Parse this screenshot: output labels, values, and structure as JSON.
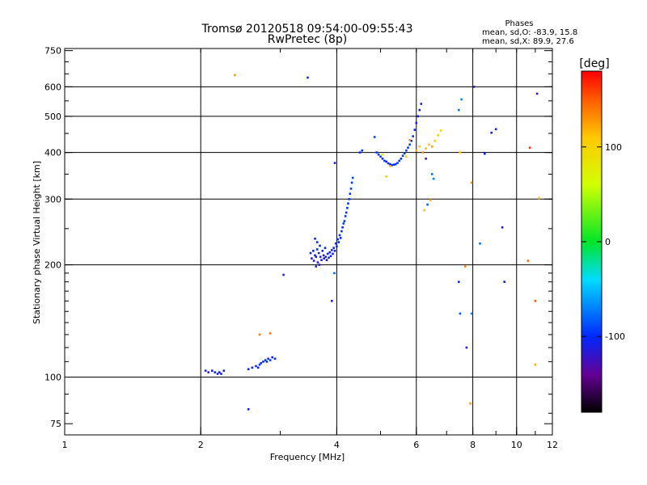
{
  "chart_data": {
    "type": "scatter",
    "title_line1": "Tromsø 20120518 09:54:00-09:55:43",
    "title_line2": "RwPretec (8p)",
    "info_title": "Phases",
    "info_line1": "mean, sd,O: -83.9, 15.8",
    "info_line2": "mean, sd,X:  89.9, 27.6",
    "xlabel": "Frequency [MHz]",
    "ylabel": "Stationary phase Virtual Height [km]",
    "x_scale": "log",
    "y_scale": "log",
    "xlim": [
      1,
      12
    ],
    "ylim": [
      70,
      760
    ],
    "x_ticks": [
      1,
      2,
      4,
      6,
      8,
      10,
      12
    ],
    "x_gridlines": [
      2,
      4,
      6,
      8,
      10
    ],
    "y_ticks": [
      75,
      100,
      200,
      300,
      400,
      500,
      600,
      750
    ],
    "y_gridlines": [
      100,
      200,
      300,
      400,
      500,
      600
    ],
    "grid": true,
    "colorbar": {
      "label": "[deg]",
      "range": [
        -180,
        180
      ],
      "ticks": [
        -100,
        0,
        100
      ]
    },
    "points": [
      [
        2.05,
        104,
        -110
      ],
      [
        2.08,
        103,
        -115
      ],
      [
        2.12,
        104,
        -105
      ],
      [
        2.15,
        103,
        -100
      ],
      [
        2.18,
        102,
        -110
      ],
      [
        2.2,
        103,
        -108
      ],
      [
        2.22,
        102,
        -112
      ],
      [
        2.25,
        104,
        -105
      ],
      [
        2.55,
        105,
        -100
      ],
      [
        2.6,
        106,
        -105
      ],
      [
        2.65,
        107,
        -110
      ],
      [
        2.68,
        106,
        -100
      ],
      [
        2.7,
        108,
        -95
      ],
      [
        2.72,
        109,
        -105
      ],
      [
        2.75,
        110,
        -100
      ],
      [
        2.78,
        111,
        -95
      ],
      [
        2.8,
        110,
        -105
      ],
      [
        2.82,
        112,
        -100
      ],
      [
        2.85,
        111,
        -95
      ],
      [
        2.88,
        113,
        -100
      ],
      [
        2.92,
        112,
        -105
      ],
      [
        2.55,
        82,
        -105
      ],
      [
        2.38,
        645,
        125
      ],
      [
        3.45,
        635,
        -105
      ],
      [
        2.7,
        130,
        140
      ],
      [
        2.85,
        131,
        140
      ],
      [
        3.05,
        188,
        -110
      ],
      [
        3.5,
        215,
        -110
      ],
      [
        3.52,
        208,
        -115
      ],
      [
        3.55,
        218,
        -105
      ],
      [
        3.56,
        205,
        -120
      ],
      [
        3.58,
        212,
        -108
      ],
      [
        3.6,
        210,
        -112
      ],
      [
        3.62,
        220,
        -100
      ],
      [
        3.63,
        203,
        -115
      ],
      [
        3.65,
        215,
        -110
      ],
      [
        3.67,
        225,
        -105
      ],
      [
        3.68,
        210,
        -115
      ],
      [
        3.7,
        206,
        -110
      ],
      [
        3.72,
        218,
        -108
      ],
      [
        3.74,
        212,
        -115
      ],
      [
        3.75,
        208,
        -112
      ],
      [
        3.77,
        222,
        -100
      ],
      [
        3.78,
        210,
        -110
      ],
      [
        3.8,
        206,
        -118
      ],
      [
        3.82,
        214,
        -105
      ],
      [
        3.84,
        209,
        -112
      ],
      [
        3.86,
        216,
        -108
      ],
      [
        3.88,
        211,
        -110
      ],
      [
        3.9,
        219,
        -100
      ],
      [
        3.92,
        214,
        -105
      ],
      [
        3.94,
        222,
        -102
      ],
      [
        3.96,
        218,
        -108
      ],
      [
        3.98,
        228,
        -100
      ],
      [
        4.0,
        224,
        -105
      ],
      [
        4.02,
        234,
        -98
      ],
      [
        4.04,
        230,
        -102
      ],
      [
        4.06,
        240,
        -98
      ],
      [
        4.08,
        236,
        -100
      ],
      [
        4.1,
        246,
        -96
      ],
      [
        4.12,
        252,
        -98
      ],
      [
        4.14,
        258,
        -95
      ],
      [
        4.16,
        262,
        -98
      ],
      [
        4.18,
        270,
        -95
      ],
      [
        4.2,
        276,
        -97
      ],
      [
        4.22,
        284,
        -94
      ],
      [
        4.24,
        292,
        -96
      ],
      [
        4.26,
        300,
        -93
      ],
      [
        4.28,
        310,
        -95
      ],
      [
        4.3,
        320,
        -92
      ],
      [
        4.32,
        332,
        -95
      ],
      [
        4.34,
        342,
        -92
      ],
      [
        3.58,
        235,
        -105
      ],
      [
        3.62,
        230,
        -100
      ],
      [
        3.6,
        198,
        -110
      ],
      [
        3.66,
        200,
        -115
      ],
      [
        3.96,
        375,
        -110
      ],
      [
        3.9,
        160,
        -115
      ],
      [
        3.95,
        190,
        -80
      ],
      [
        4.5,
        400,
        -100
      ],
      [
        4.55,
        405,
        -95
      ],
      [
        4.85,
        440,
        -90
      ],
      [
        4.9,
        400,
        -95
      ],
      [
        4.95,
        395,
        -98
      ],
      [
        5.0,
        390,
        -95
      ],
      [
        5.05,
        385,
        -98
      ],
      [
        5.1,
        380,
        -95
      ],
      [
        5.15,
        378,
        -100
      ],
      [
        5.2,
        374,
        -98
      ],
      [
        5.25,
        372,
        -100
      ],
      [
        5.3,
        370,
        -96
      ],
      [
        5.35,
        371,
        -100
      ],
      [
        5.4,
        372,
        -98
      ],
      [
        5.45,
        375,
        -95
      ],
      [
        5.5,
        380,
        -97
      ],
      [
        5.55,
        385,
        -95
      ],
      [
        5.6,
        392,
        -93
      ],
      [
        5.65,
        398,
        -95
      ],
      [
        5.7,
        405,
        -92
      ],
      [
        5.75,
        412,
        -95
      ],
      [
        5.8,
        420,
        -92
      ],
      [
        5.85,
        430,
        -95
      ],
      [
        5.9,
        442,
        -98
      ],
      [
        5.95,
        460,
        -100
      ],
      [
        6.0,
        480,
        -105
      ],
      [
        6.05,
        500,
        -108
      ],
      [
        6.1,
        520,
        -110
      ],
      [
        6.15,
        540,
        -112
      ],
      [
        5.05,
        395,
        80
      ],
      [
        5.15,
        345,
        100
      ],
      [
        5.25,
        368,
        115
      ],
      [
        5.7,
        390,
        100
      ],
      [
        5.8,
        432,
        125
      ],
      [
        6.0,
        405,
        120
      ],
      [
        6.1,
        415,
        110
      ],
      [
        6.2,
        400,
        130
      ],
      [
        6.3,
        410,
        115
      ],
      [
        6.4,
        420,
        112
      ],
      [
        6.5,
        415,
        125
      ],
      [
        6.6,
        430,
        105
      ],
      [
        6.7,
        445,
        100
      ],
      [
        6.8,
        458,
        95
      ],
      [
        6.25,
        280,
        110
      ],
      [
        6.35,
        290,
        -80
      ],
      [
        6.45,
        298,
        115
      ],
      [
        6.5,
        350,
        -75
      ],
      [
        6.55,
        340,
        -70
      ],
      [
        6.3,
        385,
        -125
      ],
      [
        7.45,
        520,
        -72
      ],
      [
        7.55,
        555,
        -70
      ],
      [
        7.5,
        400,
        110
      ],
      [
        7.45,
        180,
        -95
      ],
      [
        7.5,
        148,
        -85
      ],
      [
        7.75,
        120,
        -115
      ],
      [
        7.7,
        198,
        135
      ],
      [
        7.95,
        148,
        -70
      ],
      [
        7.9,
        85,
        125
      ],
      [
        7.95,
        332,
        130
      ],
      [
        8.05,
        600,
        -120
      ],
      [
        8.3,
        228,
        -75
      ],
      [
        8.5,
        397,
        -100
      ],
      [
        8.8,
        452,
        -110
      ],
      [
        9.0,
        462,
        -105
      ],
      [
        9.3,
        252,
        -120
      ],
      [
        9.4,
        180,
        -105
      ],
      [
        10.6,
        205,
        145
      ],
      [
        10.7,
        412,
        162
      ],
      [
        11.0,
        160,
        150
      ],
      [
        11.1,
        575,
        -125
      ],
      [
        11.2,
        302,
        112
      ],
      [
        11.0,
        108,
        118
      ]
    ]
  }
}
